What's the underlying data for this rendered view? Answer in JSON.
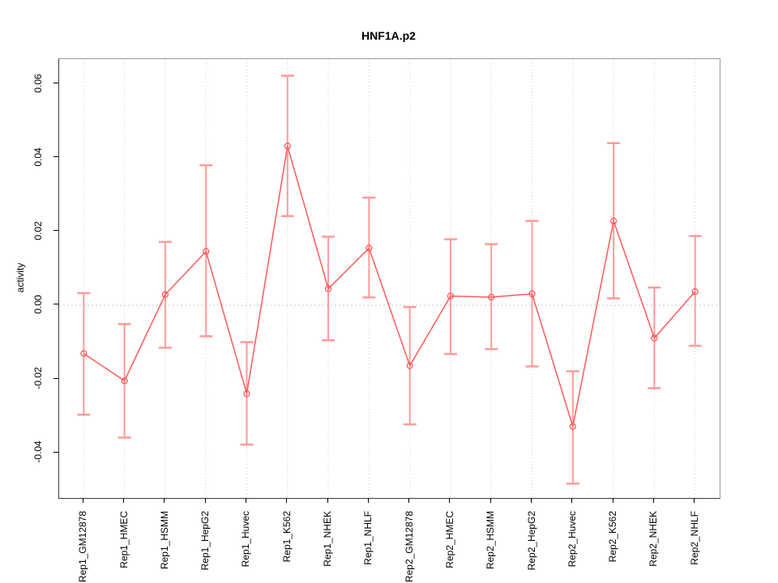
{
  "title": "HNF1A.p2",
  "y_axis_title": "activity",
  "chart_data": {
    "type": "line",
    "title": "HNF1A.p2",
    "xlabel": "",
    "ylabel": "activity",
    "legend": "none",
    "grid": "vertical dotted gridlines at each category; dotted horizontal reference line at y=0",
    "categories": [
      "Rep1_GM12878",
      "Rep1_HMEC",
      "Rep1_HSMM",
      "Rep1_HepG2",
      "Rep1_Huvec",
      "Rep1_K562",
      "Rep1_NHEK",
      "Rep1_NHLF",
      "Rep2_GM12878",
      "Rep2_HMEC",
      "Rep2_HSMM",
      "Rep2_HepG2",
      "Rep2_Huvec",
      "Rep2_K562",
      "Rep2_NHEK",
      "Rep2_NHLF"
    ],
    "series": [
      {
        "name": "activity",
        "marker": "open-circle",
        "values": [
          -0.0131,
          -0.0205,
          0.0029,
          0.0146,
          -0.024,
          0.0432,
          0.0045,
          0.0155,
          -0.0164,
          0.0025,
          0.0022,
          0.0031,
          -0.0329,
          0.0229,
          -0.0089,
          0.0037
        ],
        "ci_high": [
          0.0033,
          -0.0051,
          0.0172,
          0.038,
          -0.01,
          0.0623,
          0.0186,
          0.0292,
          -0.0005,
          0.0179,
          0.0166,
          0.0229,
          -0.0179,
          0.044,
          0.0048,
          0.0188
        ],
        "ci_low": [
          -0.0297,
          -0.0359,
          -0.0115,
          -0.0084,
          -0.0378,
          0.0242,
          -0.0095,
          0.0021,
          -0.0323,
          -0.0132,
          -0.0119,
          -0.0166,
          -0.0484,
          0.0019,
          -0.0225,
          -0.011
        ]
      }
    ],
    "yticks": [
      -0.04,
      -0.02,
      0.0,
      0.02,
      0.04,
      0.06
    ],
    "ylim": [
      -0.0523,
      0.0668
    ],
    "colors": {
      "line": "#ff5a5a",
      "marker": "#ff5a5a",
      "error_bar": "#ff9b9b",
      "gridline": "#dcdcdc",
      "zero_line": "#c8c8c8",
      "frame": "#9a9a9a",
      "axis": "#000000",
      "text": "#000000"
    }
  }
}
